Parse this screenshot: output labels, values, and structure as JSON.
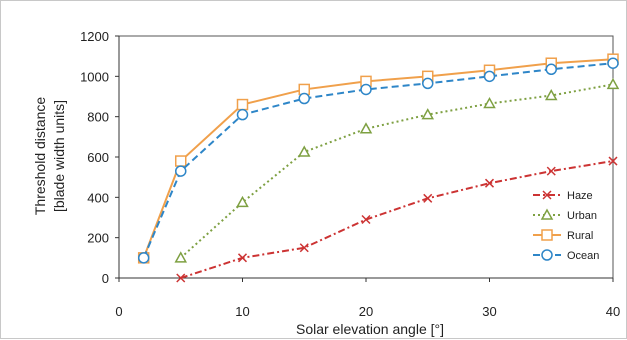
{
  "chart_data": {
    "type": "line",
    "title": "",
    "xlabel": "Solar elevation angle [°]",
    "ylabel_lines": [
      "Threshold distance",
      "[blade width units]"
    ],
    "xlim": [
      0,
      40
    ],
    "ylim": [
      0,
      1200
    ],
    "x_ticks": [
      0,
      10,
      20,
      30,
      40
    ],
    "y_ticks": [
      0,
      200,
      400,
      600,
      800,
      1000,
      1200
    ],
    "grid": false,
    "legend_position": "bottom-right",
    "series": [
      {
        "name": "Haze",
        "color": "#cc3333",
        "line_style": "dash-dot",
        "marker": "x",
        "x": [
          5,
          10,
          15,
          20,
          25,
          30,
          35,
          40
        ],
        "y": [
          0,
          100,
          150,
          290,
          395,
          470,
          530,
          580
        ]
      },
      {
        "name": "Urban",
        "color": "#7ea042",
        "line_style": "dotted",
        "marker": "triangle",
        "x": [
          5,
          10,
          15,
          20,
          25,
          30,
          35,
          40
        ],
        "y": [
          100,
          375,
          625,
          740,
          810,
          865,
          905,
          960
        ]
      },
      {
        "name": "Rural",
        "color": "#f0a04b",
        "line_style": "solid",
        "marker": "square",
        "x": [
          2,
          5,
          10,
          15,
          20,
          25,
          30,
          35,
          40
        ],
        "y": [
          100,
          580,
          860,
          935,
          975,
          1000,
          1030,
          1065,
          1085
        ]
      },
      {
        "name": "Ocean",
        "color": "#2e86c8",
        "line_style": "dashed",
        "marker": "circle",
        "x": [
          2,
          5,
          10,
          15,
          20,
          25,
          30,
          35,
          40
        ],
        "y": [
          100,
          530,
          810,
          890,
          935,
          965,
          1000,
          1035,
          1065
        ]
      }
    ]
  }
}
